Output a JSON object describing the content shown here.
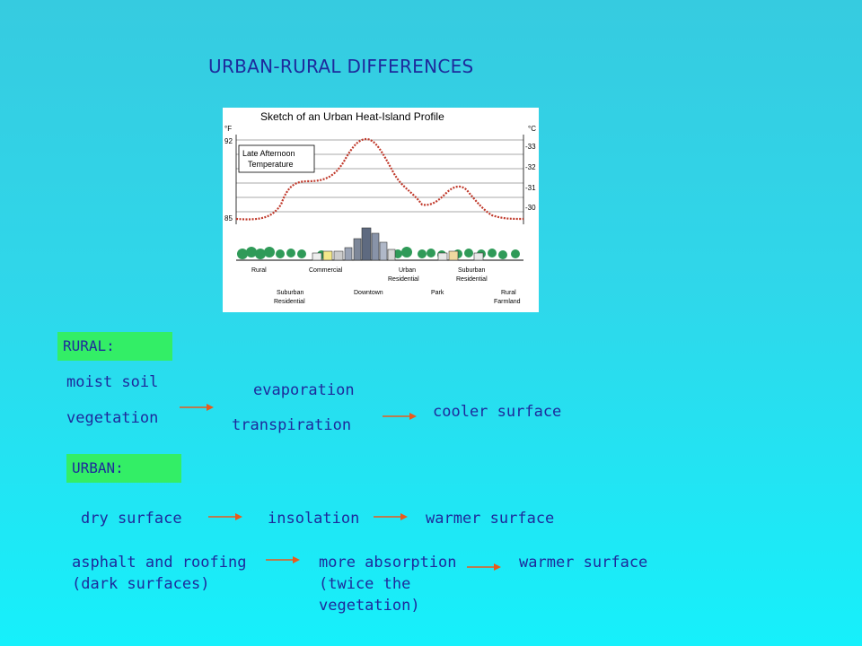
{
  "title": "URBAN-RURAL DIFFERENCES",
  "figure": {
    "heading": "Sketch of an Urban Heat-Island Profile",
    "unit_f": "°F",
    "unit_c": "°C",
    "f_ticks": [
      "92",
      "85"
    ],
    "c_ticks": [
      "-33",
      "-32",
      "-31",
      "-30"
    ],
    "legend_line1": "Late Afternoon",
    "legend_line2": "Temperature",
    "labels_top": [
      "Rural",
      "Commercial",
      "Urban",
      "Residential",
      "Suburban",
      "Residential"
    ],
    "labels_bottom": [
      "Suburban",
      "Residential",
      "Downtown",
      "Park",
      "Rural",
      "Farmland"
    ],
    "profile_color": "#c0392b"
  },
  "rural": {
    "header": "RURAL:",
    "cause1": "moist soil",
    "cause2": "vegetation",
    "process1": "evaporation",
    "process2": "transpiration",
    "result": "cooler surface"
  },
  "urban": {
    "header": "URBAN:",
    "row1": {
      "cause": "dry surface",
      "process": "insolation",
      "result": "warmer surface"
    },
    "row2": {
      "cause": "asphalt and roofing (dark surfaces)",
      "process": "more absorption (twice the vegetation)",
      "result": "warmer surface"
    }
  },
  "colors": {
    "background": "#2fd7ea",
    "text": "#1e2a9c",
    "header_bg": "#33ee66",
    "arrow": "#e85a1c"
  }
}
